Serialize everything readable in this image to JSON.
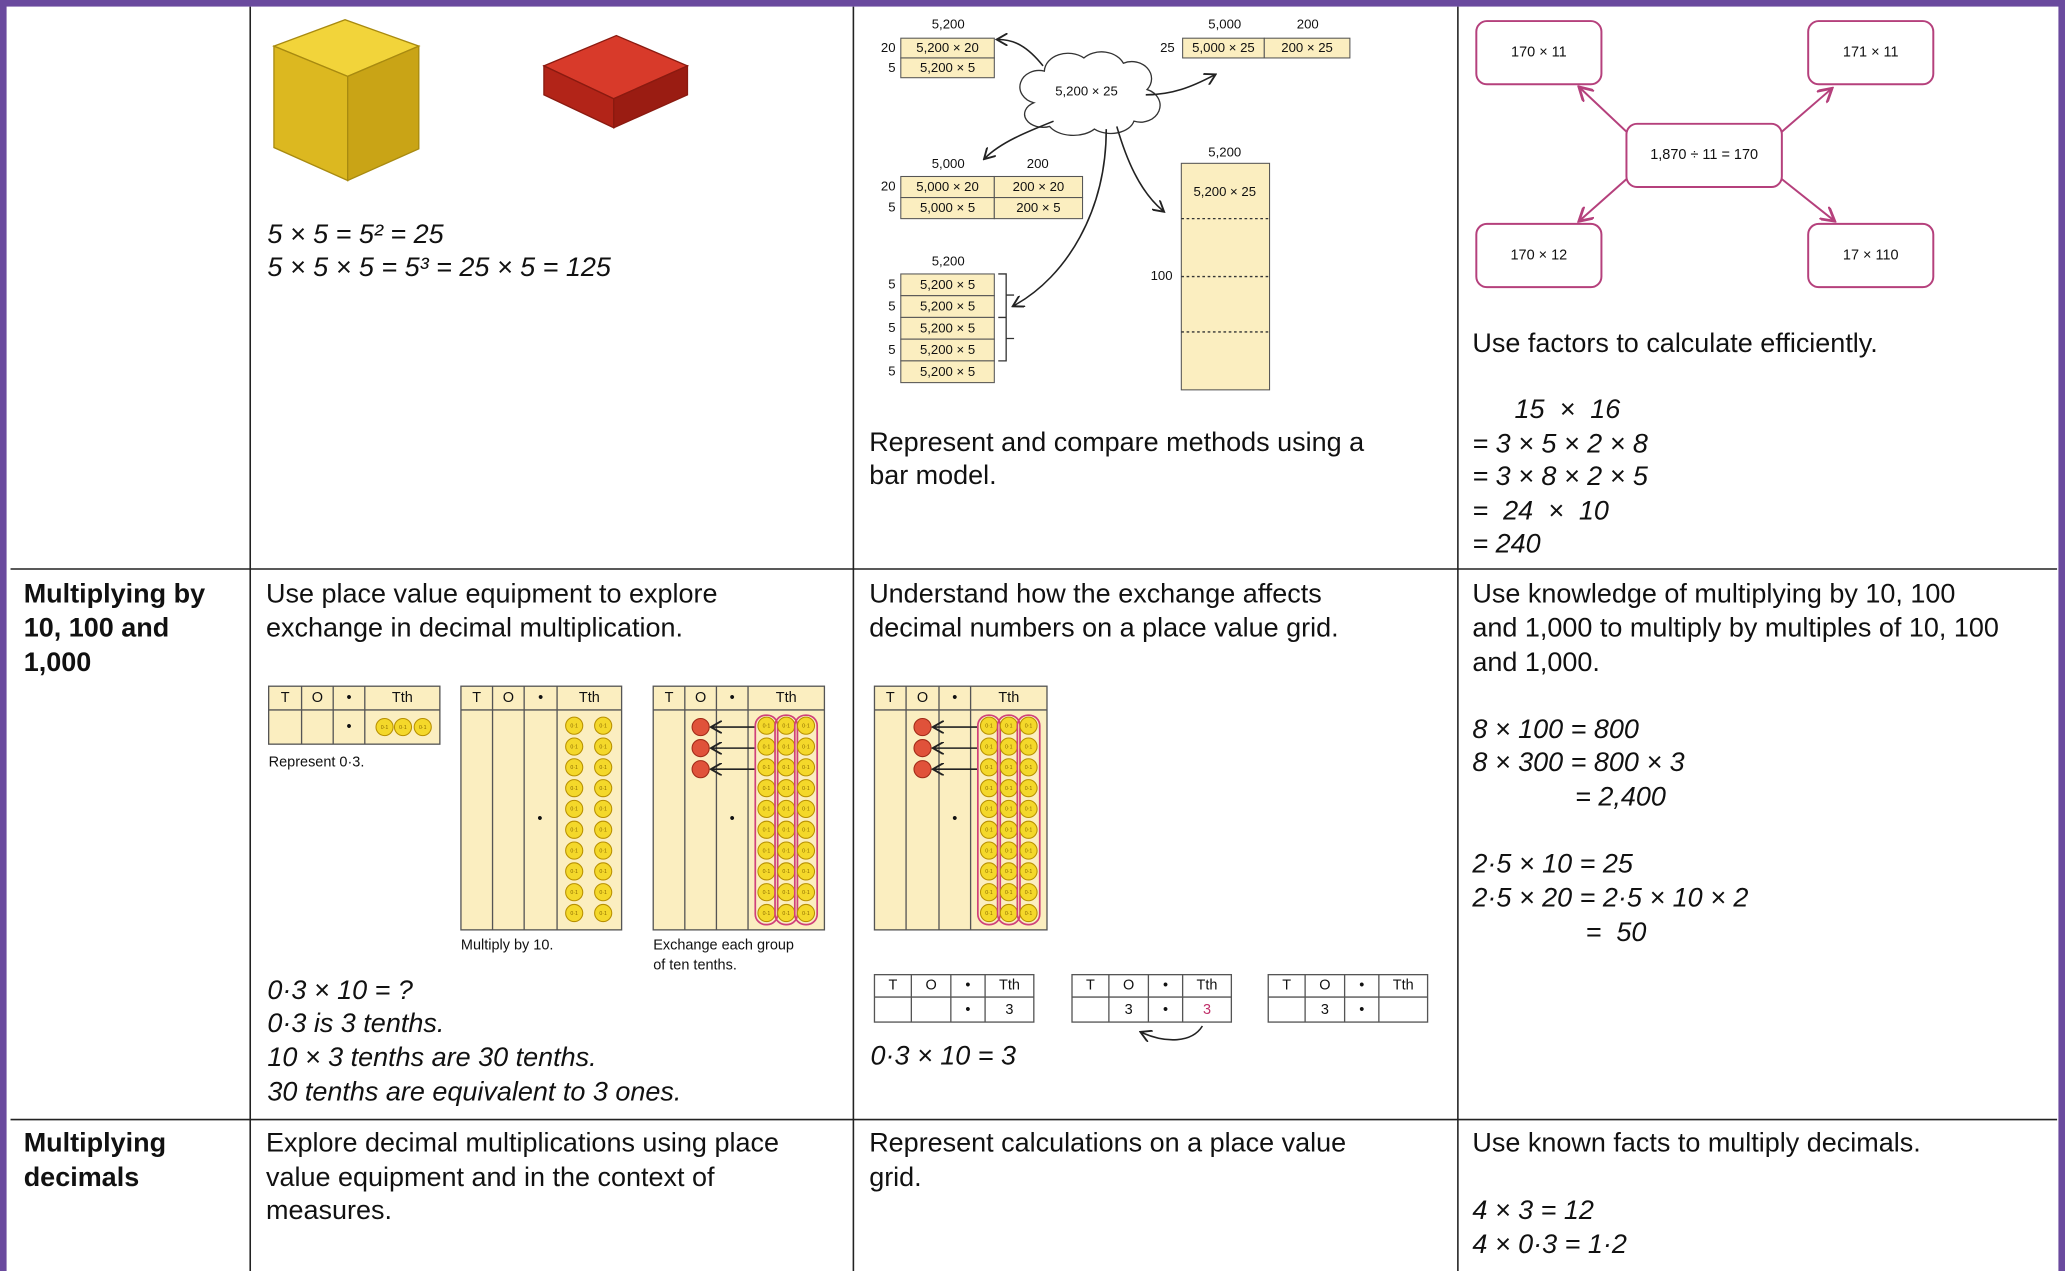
{
  "table": {
    "rows": [
      {
        "cells": [
          {
            "equations": [
              "5 × 5 = 5² = 25",
              "5 × 5 × 5 = 5³ = 25 × 5 = 125"
            ]
          },
          {
            "bar_model": {
              "split_20_5": {
                "total": "5,200",
                "rows": [
                  [
                    "20",
                    "5,200 × 20"
                  ],
                  [
                    "5",
                    "5,200 × 5"
                  ]
                ]
              },
              "split_25": {
                "headers": [
                  "5,000",
                  "200"
                ],
                "row": [
                  "25",
                  "5,000 × 25",
                  "200 × 25"
                ]
              },
              "split_both": {
                "headers": [
                  "5,000",
                  "200"
                ],
                "rows": [
                  [
                    "20",
                    "5,000 × 20",
                    "200 × 20"
                  ],
                  [
                    "5",
                    "5,000 × 5",
                    "200 × 5"
                  ]
                ]
              },
              "split_fives": {
                "total": "5,200",
                "rows": [
                  [
                    "5",
                    "5,200 × 5"
                  ],
                  [
                    "5",
                    "5,200 × 5"
                  ],
                  [
                    "5",
                    "5,200 × 5"
                  ],
                  [
                    "5",
                    "5,200 × 5"
                  ],
                  [
                    "5",
                    "5,200 × 5"
                  ]
                ]
              },
              "cloud": "5,200 × 25",
              "bar": {
                "total": "5,200",
                "label": "5,200 × 25",
                "mark": "100"
              }
            },
            "text": [
              "Represent and compare methods using a",
              "bar model."
            ]
          },
          {
            "factor_map": {
              "centre": "1,870 ÷ 11 = 170",
              "corners": [
                "170 × 11",
                "171 × 11",
                "170 × 12",
                "17 × 110"
              ]
            },
            "text": [
              "Use factors to calculate efficiently."
            ],
            "equations": [
              "15  ×  16",
              "= 3 × 5 × 2 × 8",
              "= 3 × 8 × 2 × 5",
              "=  24  ×  10",
              "= 240"
            ]
          }
        ]
      },
      {
        "heading": [
          "Multiplying by",
          "10, 100 and",
          "1,000"
        ],
        "cells": [
          {
            "text": [
              "Use place value equipment to explore",
              "exchange in decimal multiplication."
            ],
            "place_value": {
              "headers": [
                "T",
                "O",
                "•",
                "Tth"
              ],
              "counter": "0·1",
              "captions": [
                "Represent 0·3.",
                "Multiply by 10.",
                "Exchange each group",
                "of ten tenths."
              ]
            },
            "equations": [
              "0·3 × 10 = ?",
              "0·3 is 3 tenths.",
              "10 × 3 tenths are 30 tenths.",
              "30 tenths are equivalent to 3 ones."
            ]
          },
          {
            "text": [
              "Understand how the exchange affects",
              "decimal numbers on a place value grid."
            ],
            "place_value": {
              "headers": [
                "T",
                "O",
                "•",
                "Tth"
              ],
              "counter": "0·1",
              "digit": "3"
            },
            "equations": [
              "0·3 × 10 = 3"
            ]
          },
          {
            "text": [
              "Use knowledge of multiplying by 10, 100",
              "and 1,000 to multiply by multiples of 10, 100",
              "and 1,000."
            ],
            "equations": [
              "8 × 100 = 800",
              "8 × 300 = 800 × 3",
              "= 2,400",
              "2·5 × 10 = 25",
              "2·5 × 20 = 2·5 × 10 × 2",
              "=  50"
            ]
          }
        ]
      },
      {
        "heading": [
          "Multiplying",
          "decimals"
        ],
        "cells": [
          {
            "text": [
              "Explore decimal multiplications using place",
              "value equipment and in the context of",
              "measures."
            ]
          },
          {
            "text": [
              "Represent calculations on a place value",
              "grid."
            ]
          },
          {
            "text": [
              "Use known facts to multiply decimals."
            ],
            "equations": [
              "4 × 3 = 12",
              "4 × 0·3 = 1·2"
            ]
          }
        ]
      }
    ]
  }
}
